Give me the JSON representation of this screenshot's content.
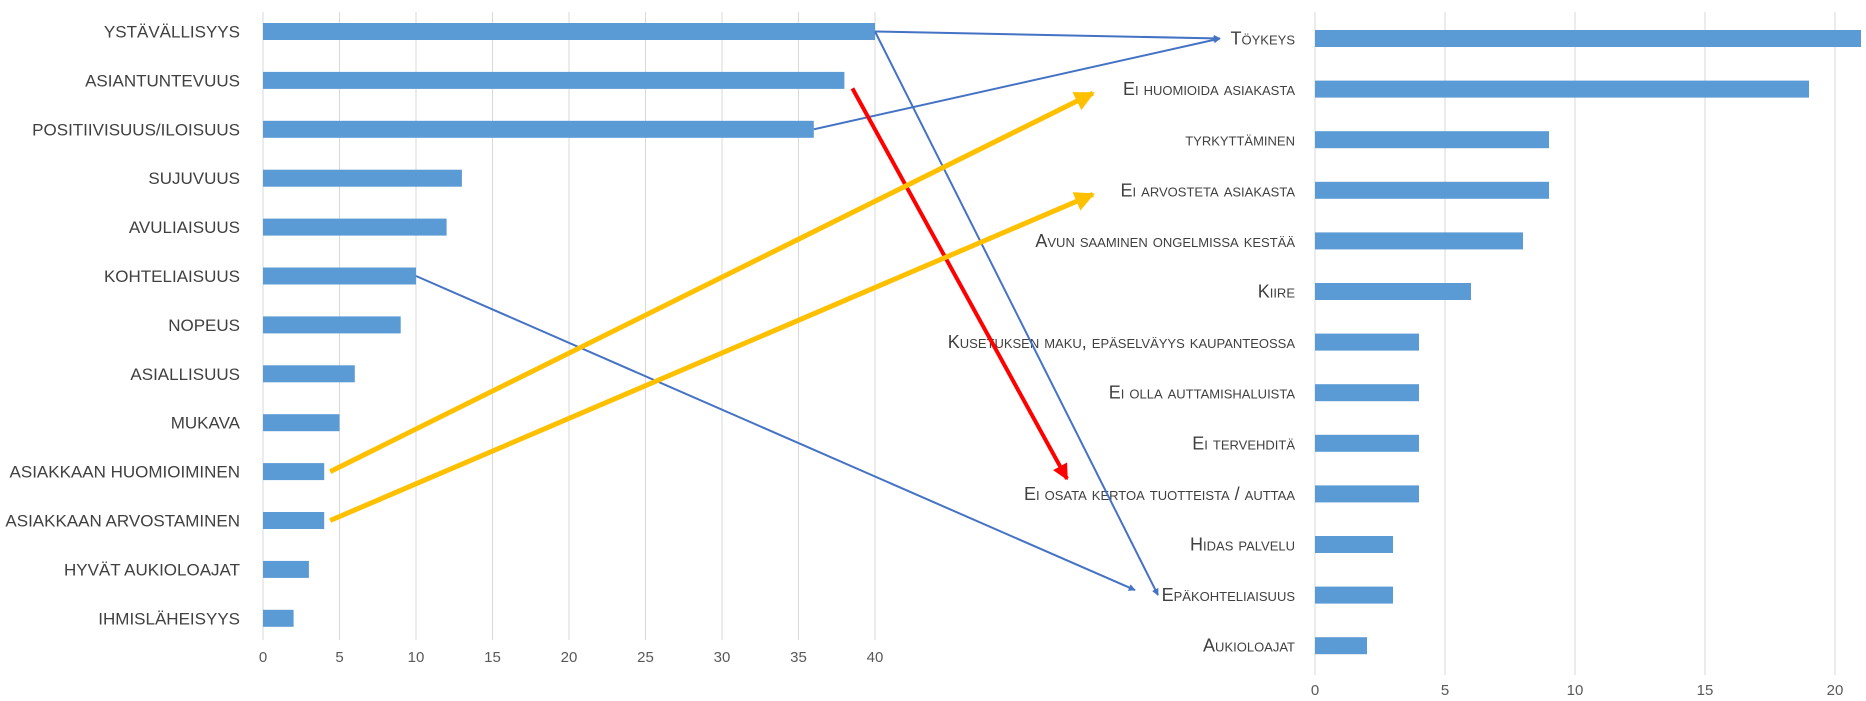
{
  "chart_data": [
    {
      "type": "bar",
      "orientation": "horizontal",
      "categories": [
        "YSTÄVÄLLISYYS",
        "ASIANTUNTEVUUS",
        "POSITIIVISUUS/ILOISUUS",
        "SUJUVUUS",
        "AVULIAISUUS",
        "KOHTELIAISUUS",
        "NOPEUS",
        "ASIALLISUUS",
        "MUKAVA",
        "ASIAKKAAN HUOMIOIMINEN",
        "ASIAKKAAN ARVOSTAMINEN",
        "HYVÄT AUKIOLOAJAT",
        "IHMISLÄHEISYYS"
      ],
      "values": [
        40,
        38,
        36,
        13,
        12,
        10,
        9,
        6,
        5,
        4,
        4,
        3,
        2
      ],
      "xlim": [
        0,
        40
      ],
      "xticks": [
        "0",
        "5",
        "10",
        "15",
        "20",
        "25",
        "30",
        "35",
        "40"
      ],
      "grid": true
    },
    {
      "type": "bar",
      "orientation": "horizontal",
      "categories": [
        "Töykeys",
        "Ei huomioida asiakasta",
        "tyrkyttäminen",
        "Ei arvosteta asiakasta",
        "Avun saaminen ongelmissa kestää",
        "Kiire",
        "Kusetuksen maku, epäselväyys kaupanteossa",
        "Ei olla auttamishaluista",
        "Ei tervehditä",
        "Ei osata kertoa tuotteista / auttaa",
        "Hidas palvelu",
        "Epäkohteliaisuus",
        "Aukioloajat"
      ],
      "values": [
        21,
        19,
        9,
        9,
        8,
        6,
        4,
        4,
        4,
        4,
        3,
        3,
        2
      ],
      "xlim": [
        0,
        21
      ],
      "xticks": [
        "0",
        "5",
        "10",
        "15",
        "20"
      ],
      "grid": true
    }
  ],
  "arrows": [
    {
      "from": "YSTÄVÄLLISYYS",
      "to": "Töykeys",
      "color": "#4472c4"
    },
    {
      "from": "POSITIIVISUUS/ILOISUUS",
      "to": "Töykeys",
      "color": "#4472c4"
    },
    {
      "from": "YSTÄVÄLLISYYS",
      "to": "Epäkohteliaisuus",
      "color": "#4472c4"
    },
    {
      "from": "KOHTELIAISUUS",
      "to": "Epäkohteliaisuus",
      "color": "#4472c4"
    },
    {
      "from": "ASIANTUNTEVUUS",
      "to": "Ei osata kertoa tuotteista / auttaa",
      "color": "#ff0000"
    },
    {
      "from": "ASIAKKAAN HUOMIOIMINEN",
      "to": "Ei huomioida asiakasta",
      "color": "#ffc000"
    },
    {
      "from": "ASIAKKAAN ARVOSTAMINEN",
      "to": "Ei arvosteta asiakasta",
      "color": "#ffc000"
    }
  ],
  "colors": {
    "bar": "#5b9bd5",
    "grid": "#d9d9d9",
    "text": "#404040"
  }
}
